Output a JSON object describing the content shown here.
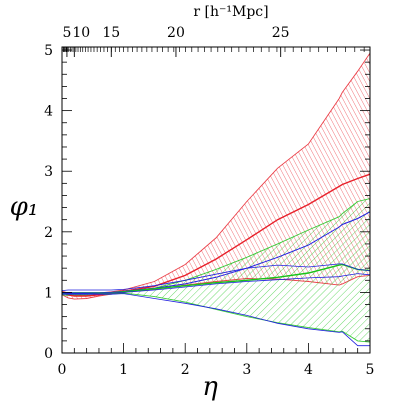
{
  "chart_data": {
    "type": "line",
    "xlabel": "η",
    "ylabel": "φ₁",
    "top_axis_label": "r [h⁻¹Mpc]",
    "xlim": [
      0,
      5
    ],
    "ylim": [
      0,
      5.05
    ],
    "x_ticks": [
      "0",
      "1",
      "2",
      "3",
      "4",
      "5"
    ],
    "y_ticks": [
      "0",
      "1",
      "2",
      "3",
      "4",
      "5"
    ],
    "top_ticks": [
      {
        "eta": 0.08,
        "label": "5"
      },
      {
        "eta": 0.2,
        "label": "10"
      },
      {
        "eta": 0.8,
        "label": "15"
      },
      {
        "eta": 1.85,
        "label": "20"
      },
      {
        "eta": 3.55,
        "label": "25"
      }
    ],
    "colors": {
      "red": "#e8202a",
      "green": "#18c418",
      "blue": "#2020e0"
    },
    "x": [
      0,
      0.1,
      0.2,
      0.4,
      0.6,
      0.8,
      1.0,
      1.5,
      2.0,
      2.5,
      3.0,
      3.5,
      4.0,
      4.5,
      4.55,
      4.8,
      5.0
    ],
    "bands": [
      {
        "color": "red",
        "upper": [
          1.02,
          0.99,
          0.98,
          0.98,
          0.99,
          1.01,
          1.04,
          1.18,
          1.46,
          1.9,
          2.5,
          3.05,
          3.45,
          4.2,
          4.3,
          4.65,
          4.95
        ],
        "lower": [
          0.96,
          0.91,
          0.89,
          0.9,
          0.94,
          0.97,
          1.0,
          1.05,
          1.12,
          1.18,
          1.23,
          1.22,
          1.18,
          1.12,
          1.14,
          1.26,
          1.28
        ]
      },
      {
        "color": "green",
        "upper": [
          1.0,
          1.0,
          1.0,
          1.0,
          1.0,
          1.0,
          1.02,
          1.07,
          1.2,
          1.38,
          1.58,
          1.8,
          2.03,
          2.25,
          2.3,
          2.5,
          2.55
        ],
        "lower": [
          0.96,
          0.95,
          0.95,
          0.95,
          0.96,
          0.97,
          0.99,
          0.93,
          0.84,
          0.72,
          0.6,
          0.5,
          0.42,
          0.35,
          0.36,
          0.2,
          0.18
        ]
      }
    ],
    "series": [
      {
        "color": "red",
        "values": [
          1.0,
          0.96,
          0.94,
          0.94,
          0.96,
          0.99,
          1.02,
          1.1,
          1.28,
          1.55,
          1.87,
          2.2,
          2.45,
          2.75,
          2.78,
          2.88,
          2.95
        ]
      },
      {
        "color": "blue",
        "values": [
          1.0,
          0.99,
          0.99,
          0.99,
          0.99,
          1.0,
          1.02,
          1.07,
          1.14,
          1.25,
          1.4,
          1.58,
          1.78,
          2.08,
          2.12,
          2.22,
          2.33
        ]
      },
      {
        "color": "green",
        "values": [
          0.98,
          0.97,
          0.97,
          0.97,
          0.98,
          0.99,
          1.01,
          1.06,
          1.11,
          1.16,
          1.2,
          1.25,
          1.32,
          1.45,
          1.46,
          1.38,
          1.36
        ]
      },
      {
        "color": "blue",
        "values": [
          0.99,
          0.98,
          0.98,
          0.98,
          0.99,
          0.99,
          1.0,
          1.04,
          1.09,
          1.14,
          1.18,
          1.21,
          1.24,
          1.26,
          1.27,
          1.31,
          1.29
        ]
      },
      {
        "color": "blue",
        "values": [
          1.03,
          1.04,
          1.04,
          1.04,
          1.04,
          1.04,
          1.05,
          1.11,
          1.2,
          1.3,
          1.4,
          1.45,
          1.42,
          1.47,
          1.47,
          1.38,
          1.36
        ]
      },
      {
        "color": "blue",
        "values": [
          0.97,
          0.97,
          0.97,
          0.97,
          0.97,
          0.97,
          0.98,
          0.9,
          0.82,
          0.73,
          0.62,
          0.49,
          0.4,
          0.34,
          0.35,
          0.12,
          0.12
        ]
      }
    ]
  }
}
